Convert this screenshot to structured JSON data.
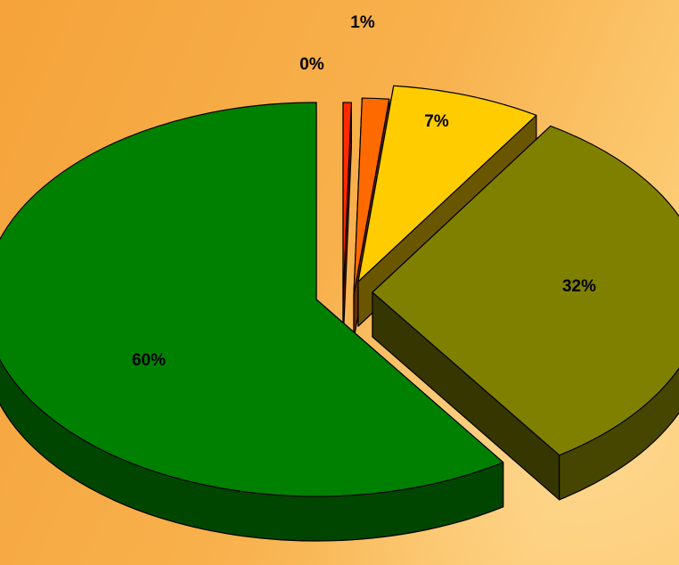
{
  "chart_data": {
    "type": "pie",
    "style": "3d-exploded",
    "slices": [
      {
        "label": "0%",
        "value": 0.4,
        "color": "#FF2A00"
      },
      {
        "label": "1%",
        "value": 1.3,
        "color": "#FF6A00"
      },
      {
        "label": "7%",
        "value": 7.3,
        "color": "#FFCC00"
      },
      {
        "label": "32%",
        "value": 31.5,
        "color": "#808000"
      },
      {
        "label": "60%",
        "value": 59.5,
        "color": "#008000"
      }
    ],
    "legend": "none"
  },
  "background": {
    "colors": [
      "#F5A43A",
      "#FCCB73"
    ]
  }
}
